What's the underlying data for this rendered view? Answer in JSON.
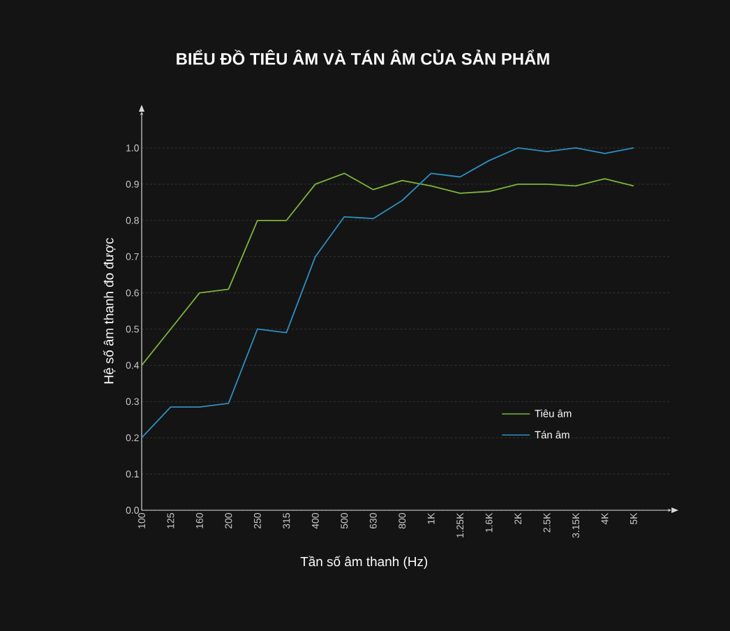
{
  "chart_data": {
    "type": "line",
    "title": "BIỂU ĐỒ TIÊU ÂM VÀ TÁN ÂM CỦA SẢN PHẨM",
    "xlabel": "Tần số âm thanh (Hz)",
    "ylabel": "Hệ số âm thanh đo được",
    "categories": [
      "100",
      "125",
      "160",
      "200",
      "250",
      "315",
      "400",
      "500",
      "630",
      "800",
      "1K",
      "1.25K",
      "1.6K",
      "2K",
      "2.5K",
      "3.15K",
      "4K",
      "5K"
    ],
    "series": [
      {
        "name": "Tiêu âm",
        "color": "#7db53c",
        "values": [
          0.4,
          0.5,
          0.6,
          0.61,
          0.8,
          0.8,
          0.9,
          0.93,
          0.885,
          0.91,
          0.895,
          0.875,
          0.88,
          0.9,
          0.9,
          0.895,
          0.915,
          0.895
        ]
      },
      {
        "name": "Tán âm",
        "color": "#2e8fbf",
        "values": [
          0.2,
          0.285,
          0.285,
          0.295,
          0.5,
          0.49,
          0.7,
          0.81,
          0.805,
          0.855,
          0.93,
          0.92,
          0.965,
          1.0,
          0.99,
          1.0,
          0.985,
          1.0
        ]
      }
    ],
    "ylim": [
      0,
      1.1
    ],
    "yticks": [
      {
        "value": 0,
        "label": "0.0"
      },
      0.1,
      0.2,
      0.3,
      0.4,
      0.5,
      0.6,
      0.7,
      0.8,
      0.9,
      {
        "value": 1.0,
        "label": "1.0"
      }
    ],
    "grid": "y",
    "legend": "right",
    "line_style": "solid"
  }
}
